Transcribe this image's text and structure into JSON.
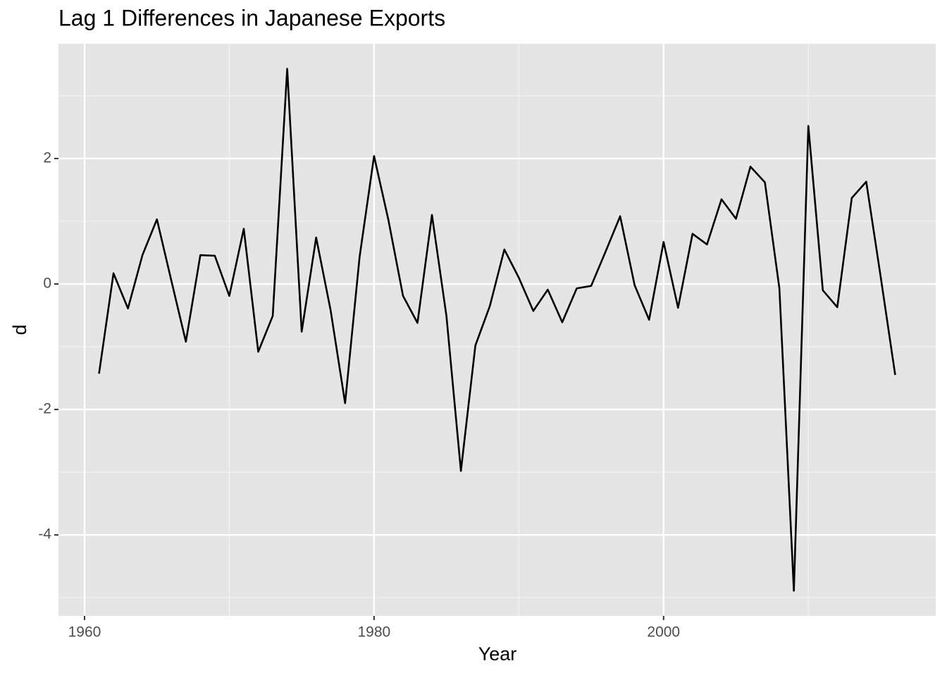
{
  "chart_data": {
    "type": "line",
    "title": "Lag 1 Differences in Japanese Exports",
    "x_label": "Year",
    "y_label": "d",
    "x": [
      1961,
      1962,
      1963,
      1964,
      1965,
      1966,
      1967,
      1968,
      1969,
      1970,
      1971,
      1972,
      1973,
      1974,
      1975,
      1976,
      1977,
      1978,
      1979,
      1980,
      1981,
      1982,
      1983,
      1984,
      1985,
      1986,
      1987,
      1988,
      1989,
      1990,
      1991,
      1992,
      1993,
      1994,
      1995,
      1996,
      1997,
      1998,
      1999,
      2000,
      2001,
      2002,
      2003,
      2004,
      2005,
      2006,
      2007,
      2008,
      2009,
      2010,
      2011,
      2012,
      2013,
      2014,
      2015,
      2016
    ],
    "series": [
      {
        "color": "#000000",
        "values": [
          -1.43,
          0.17,
          -0.39,
          0.46,
          1.03,
          0.05,
          -0.92,
          0.46,
          0.45,
          -0.19,
          0.88,
          -1.08,
          -0.51,
          3.43,
          -0.76,
          0.74,
          -0.42,
          -1.9,
          0.43,
          2.04,
          1.01,
          -0.19,
          -0.62,
          1.1,
          -0.51,
          -2.98,
          -0.98,
          -0.35,
          0.55,
          0.1,
          -0.43,
          -0.09,
          -0.61,
          -0.07,
          -0.03,
          0.52,
          1.08,
          -0.02,
          -0.57,
          0.67,
          -0.38,
          0.8,
          0.63,
          1.35,
          1.04,
          1.87,
          1.62,
          -0.07,
          -4.89,
          2.52,
          -0.1,
          -0.37,
          1.37,
          1.63,
          0.11,
          -1.45
        ]
      }
    ],
    "xlim": [
      1958.2,
      2018.8
    ],
    "ylim": [
      -5.29,
      3.83
    ],
    "xticks": [
      1960,
      1980,
      2000
    ],
    "yticks": [
      -4,
      -2,
      0,
      2
    ],
    "grid": true,
    "minor_grid": true
  }
}
